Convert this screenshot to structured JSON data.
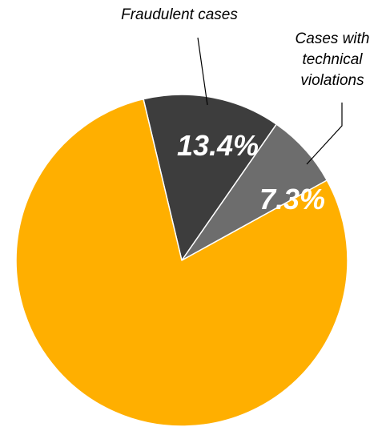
{
  "chart_data": {
    "type": "pie",
    "start_angle_deg": -13.4,
    "direction": "clockwise",
    "slices": [
      {
        "label": "Fraudulent cases",
        "value": 13.4,
        "value_label": "13.4%",
        "color": "#3d3d3d"
      },
      {
        "label": "Cases with technical violations",
        "label_lines": [
          "Cases with",
          "technical",
          "violations"
        ],
        "value": 7.3,
        "value_label": "7.3%",
        "color": "#6d6d6d"
      },
      {
        "label": "",
        "value": 79.3,
        "value_label": "",
        "color": "#ffaf00"
      }
    ]
  }
}
